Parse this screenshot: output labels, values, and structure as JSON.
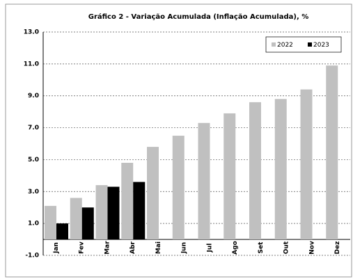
{
  "chart_data": {
    "type": "bar",
    "title": "Gráfico 2 - Variação Acumulada (Inflação Acumulada), %",
    "categories": [
      "Jan",
      "Fev",
      "Mar",
      "Abr",
      "Mai",
      "Jun",
      "Jul",
      "Ago",
      "Set",
      "Out",
      "Nov",
      "Dez"
    ],
    "series": [
      {
        "name": "2022",
        "color": "#c0c0c0",
        "values": [
          2.1,
          2.6,
          3.4,
          4.8,
          5.8,
          6.5,
          7.3,
          7.9,
          8.6,
          8.8,
          9.4,
          10.9
        ]
      },
      {
        "name": "2023",
        "color": "#000000",
        "values": [
          1.0,
          2.0,
          3.3,
          3.6,
          null,
          null,
          null,
          null,
          null,
          null,
          null,
          null
        ]
      }
    ],
    "ylim": [
      -1,
      13
    ],
    "yticks": [
      {
        "value": -1,
        "label": "-1.0"
      },
      {
        "value": 1,
        "label": "1.0"
      },
      {
        "value": 3,
        "label": "3.0"
      },
      {
        "value": 5,
        "label": "5.0"
      },
      {
        "value": 7,
        "label": "7.0"
      },
      {
        "value": 9,
        "label": "9.0"
      },
      {
        "value": 11,
        "label": "11.0"
      },
      {
        "value": 13,
        "label": "13.0"
      }
    ],
    "grid": true,
    "legend": "top-right"
  }
}
